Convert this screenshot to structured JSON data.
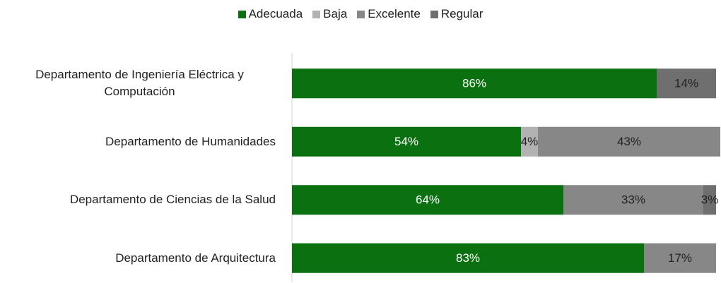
{
  "chart_data": {
    "type": "stacked_bar_horizontal",
    "categories": [
      "Departamento de Ingeniería Eléctrica y Computación",
      "Departamento de Humanidades",
      "Departamento de Ciencias de la Salud",
      "Departamento de Arquitectura"
    ],
    "series": [
      {
        "name": "Adecuada",
        "color": "#0b7010",
        "values": [
          86,
          54,
          64,
          83
        ],
        "value_labels": [
          "86%",
          "54%",
          "64%",
          "83%"
        ]
      },
      {
        "name": "Baja",
        "color": "#b2b2b2",
        "values": [
          null,
          4,
          null,
          null
        ],
        "value_labels": [
          null,
          "4%",
          null,
          null
        ]
      },
      {
        "name": "Excelente",
        "color": "#878787",
        "values": [
          null,
          43,
          33,
          17
        ],
        "value_labels": [
          null,
          "43%",
          "33%",
          "17%"
        ]
      },
      {
        "name": "Regular",
        "color": "#6f6f6f",
        "values": [
          14,
          null,
          3,
          null
        ],
        "value_labels": [
          "14%",
          null,
          "3%",
          null
        ]
      }
    ],
    "xlim": [
      0,
      100
    ],
    "legend": "top"
  }
}
